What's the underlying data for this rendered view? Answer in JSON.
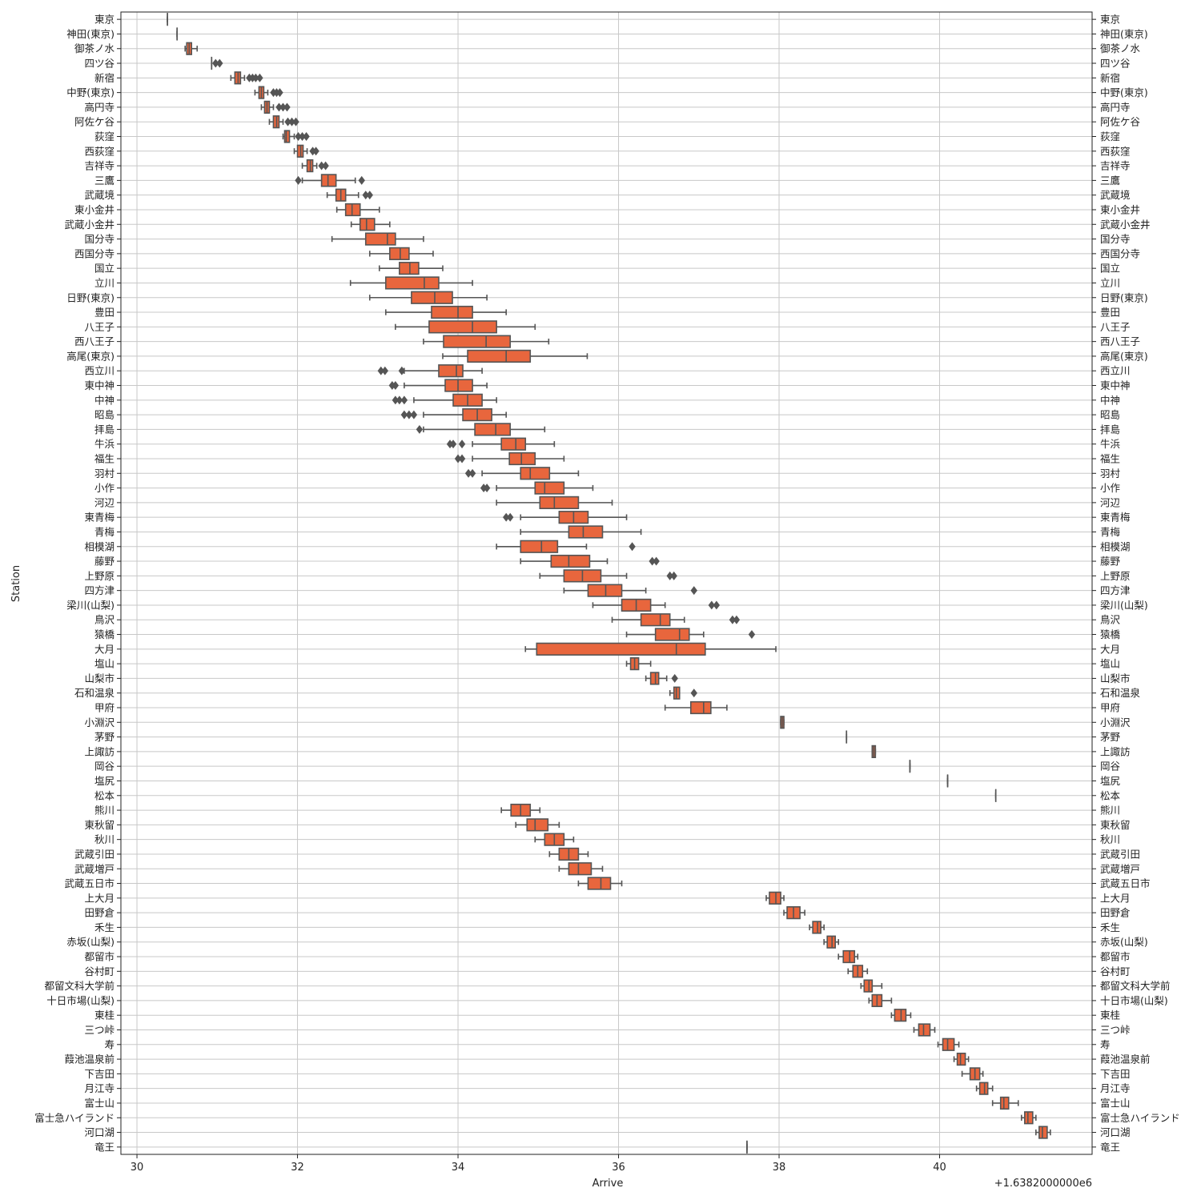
{
  "chart_data": {
    "type": "box",
    "xlabel": "Arrive",
    "ylabel": "Station",
    "x_offset_label": "+1.6382000000e6",
    "xlim": [
      29.8,
      41.9
    ],
    "xticks": [
      30,
      32,
      34,
      36,
      38,
      40
    ],
    "xtick_labels": [
      "30",
      "32",
      "34",
      "36",
      "38",
      "40"
    ],
    "grid": true,
    "box_color": "#e8663d",
    "line_color": "#555555",
    "categories": [
      "東京",
      "神田(東京)",
      "御茶ノ水",
      "四ツ谷",
      "新宿",
      "中野(東京)",
      "高円寺",
      "阿佐ケ谷",
      "荻窪",
      "西荻窪",
      "吉祥寺",
      "三鷹",
      "武蔵境",
      "東小金井",
      "武蔵小金井",
      "国分寺",
      "西国分寺",
      "国立",
      "立川",
      "日野(東京)",
      "豊田",
      "八王子",
      "西八王子",
      "高尾(東京)",
      "西立川",
      "東中神",
      "中神",
      "昭島",
      "拝島",
      "牛浜",
      "福生",
      "羽村",
      "小作",
      "河辺",
      "東青梅",
      "青梅",
      "相模湖",
      "藤野",
      "上野原",
      "四方津",
      "梁川(山梨)",
      "鳥沢",
      "猿橋",
      "大月",
      "塩山",
      "山梨市",
      "石和温泉",
      "甲府",
      "小淵沢",
      "茅野",
      "上諏訪",
      "岡谷",
      "塩尻",
      "松本",
      "熊川",
      "東秋留",
      "秋川",
      "武蔵引田",
      "武蔵増戸",
      "武蔵五日市",
      "上大月",
      "田野倉",
      "禾生",
      "赤坂(山梨)",
      "都留市",
      "谷村町",
      "都留文科大学前",
      "十日市場(山梨)",
      "東桂",
      "三つ峠",
      "寿",
      "葭池温泉前",
      "下吉田",
      "月江寺",
      "富士山",
      "富士急ハイランド",
      "河口湖",
      "竜王"
    ],
    "boxes": [
      {
        "min": 30.38,
        "q1": 30.38,
        "med": 30.38,
        "q3": 30.38,
        "max": 30.38,
        "fliers": []
      },
      {
        "min": 30.5,
        "q1": 30.5,
        "med": 30.5,
        "q3": 30.5,
        "max": 30.5,
        "fliers": []
      },
      {
        "min": 30.6,
        "q1": 30.62,
        "med": 30.65,
        "q3": 30.68,
        "max": 30.75,
        "fliers": []
      },
      {
        "min": 30.93,
        "q1": 30.93,
        "med": 30.93,
        "q3": 30.93,
        "max": 30.93,
        "fliers": [
          30.98,
          31.03
        ]
      },
      {
        "min": 31.17,
        "q1": 31.22,
        "med": 31.26,
        "q3": 31.29,
        "max": 31.34,
        "fliers": [
          31.4,
          31.44,
          31.48,
          31.53
        ]
      },
      {
        "min": 31.47,
        "q1": 31.52,
        "med": 31.55,
        "q3": 31.58,
        "max": 31.63,
        "fliers": [
          31.7,
          31.74,
          31.78
        ]
      },
      {
        "min": 31.55,
        "q1": 31.59,
        "med": 31.62,
        "q3": 31.65,
        "max": 31.7,
        "fliers": [
          31.77,
          31.82,
          31.87
        ]
      },
      {
        "min": 31.65,
        "q1": 31.7,
        "med": 31.74,
        "q3": 31.77,
        "max": 31.82,
        "fliers": [
          31.88,
          31.93,
          31.98
        ]
      },
      {
        "min": 31.82,
        "q1": 31.84,
        "med": 31.86,
        "q3": 31.9,
        "max": 31.96,
        "fliers": [
          32.01,
          32.06,
          32.11
        ]
      },
      {
        "min": 31.96,
        "q1": 32.0,
        "med": 32.04,
        "q3": 32.07,
        "max": 32.12,
        "fliers": [
          32.19,
          32.23
        ]
      },
      {
        "min": 32.06,
        "q1": 32.12,
        "med": 32.16,
        "q3": 32.19,
        "max": 32.24,
        "fliers": [
          32.3,
          32.35
        ]
      },
      {
        "min": 32.06,
        "q1": 32.3,
        "med": 32.38,
        "q3": 32.48,
        "max": 32.72,
        "fliers": [
          32.01,
          32.8
        ]
      },
      {
        "min": 32.37,
        "q1": 32.48,
        "med": 32.54,
        "q3": 32.6,
        "max": 32.76,
        "fliers": [
          32.85,
          32.9
        ]
      },
      {
        "min": 32.49,
        "q1": 32.6,
        "med": 32.68,
        "q3": 32.78,
        "max": 33.02,
        "fliers": []
      },
      {
        "min": 32.67,
        "q1": 32.78,
        "med": 32.86,
        "q3": 32.96,
        "max": 33.15,
        "fliers": []
      },
      {
        "min": 32.43,
        "q1": 32.85,
        "med": 33.12,
        "q3": 33.22,
        "max": 33.57,
        "fliers": []
      },
      {
        "min": 32.9,
        "q1": 33.15,
        "med": 33.28,
        "q3": 33.39,
        "max": 33.69,
        "fliers": []
      },
      {
        "min": 33.02,
        "q1": 33.27,
        "med": 33.4,
        "q3": 33.51,
        "max": 33.81,
        "fliers": []
      },
      {
        "min": 32.66,
        "q1": 33.1,
        "med": 33.58,
        "q3": 33.76,
        "max": 34.18,
        "fliers": []
      },
      {
        "min": 32.9,
        "q1": 33.42,
        "med": 33.71,
        "q3": 33.93,
        "max": 34.36,
        "fliers": []
      },
      {
        "min": 33.1,
        "q1": 33.67,
        "med": 34.0,
        "q3": 34.18,
        "max": 34.6,
        "fliers": []
      },
      {
        "min": 33.22,
        "q1": 33.64,
        "med": 34.18,
        "q3": 34.48,
        "max": 34.96,
        "fliers": []
      },
      {
        "min": 33.57,
        "q1": 33.82,
        "med": 34.35,
        "q3": 34.65,
        "max": 35.13,
        "fliers": []
      },
      {
        "min": 33.81,
        "q1": 34.12,
        "med": 34.6,
        "q3": 34.9,
        "max": 35.61,
        "fliers": []
      },
      {
        "min": 33.33,
        "q1": 33.76,
        "med": 33.98,
        "q3": 34.06,
        "max": 34.3,
        "fliers": [
          33.04,
          33.09,
          33.3
        ]
      },
      {
        "min": 33.33,
        "q1": 33.84,
        "med": 34.0,
        "q3": 34.18,
        "max": 34.36,
        "fliers": [
          33.18,
          33.22
        ]
      },
      {
        "min": 33.45,
        "q1": 33.94,
        "med": 34.12,
        "q3": 34.3,
        "max": 34.48,
        "fliers": [
          33.22,
          33.27,
          33.33
        ]
      },
      {
        "min": 33.57,
        "q1": 34.06,
        "med": 34.24,
        "q3": 34.42,
        "max": 34.6,
        "fliers": [
          33.33,
          33.39,
          33.45
        ]
      },
      {
        "min": 33.57,
        "q1": 34.21,
        "med": 34.47,
        "q3": 34.65,
        "max": 35.08,
        "fliers": [
          33.52
        ]
      },
      {
        "min": 34.18,
        "q1": 34.54,
        "med": 34.72,
        "q3": 34.84,
        "max": 35.2,
        "fliers": [
          33.9,
          33.94,
          34.05
        ]
      },
      {
        "min": 34.18,
        "q1": 34.64,
        "med": 34.79,
        "q3": 34.96,
        "max": 35.32,
        "fliers": [
          34.0,
          34.05
        ]
      },
      {
        "min": 34.3,
        "q1": 34.78,
        "med": 34.9,
        "q3": 35.14,
        "max": 35.5,
        "fliers": [
          34.13,
          34.18
        ]
      },
      {
        "min": 34.48,
        "q1": 34.96,
        "med": 35.08,
        "q3": 35.32,
        "max": 35.68,
        "fliers": [
          34.32,
          34.36
        ]
      },
      {
        "min": 34.48,
        "q1": 35.02,
        "med": 35.2,
        "q3": 35.5,
        "max": 35.92,
        "fliers": []
      },
      {
        "min": 34.78,
        "q1": 35.26,
        "med": 35.44,
        "q3": 35.62,
        "max": 36.1,
        "fliers": [
          34.6,
          34.65
        ]
      },
      {
        "min": 34.78,
        "q1": 35.38,
        "med": 35.56,
        "q3": 35.8,
        "max": 36.28,
        "fliers": []
      },
      {
        "min": 34.48,
        "q1": 34.78,
        "med": 35.04,
        "q3": 35.24,
        "max": 35.6,
        "fliers": [
          36.17
        ]
      },
      {
        "min": 34.78,
        "q1": 35.16,
        "med": 35.38,
        "q3": 35.64,
        "max": 35.86,
        "fliers": [
          36.42,
          36.47
        ]
      },
      {
        "min": 35.02,
        "q1": 35.32,
        "med": 35.55,
        "q3": 35.78,
        "max": 36.1,
        "fliers": [
          36.64,
          36.69
        ]
      },
      {
        "min": 35.32,
        "q1": 35.62,
        "med": 35.84,
        "q3": 36.04,
        "max": 36.34,
        "fliers": [
          36.94
        ]
      },
      {
        "min": 35.68,
        "q1": 36.04,
        "med": 36.22,
        "q3": 36.4,
        "max": 36.58,
        "fliers": [
          37.16,
          37.22
        ]
      },
      {
        "min": 35.92,
        "q1": 36.28,
        "med": 36.52,
        "q3": 36.64,
        "max": 36.82,
        "fliers": [
          37.42,
          37.47
        ]
      },
      {
        "min": 36.1,
        "q1": 36.46,
        "med": 36.76,
        "q3": 36.88,
        "max": 37.06,
        "fliers": [
          37.66
        ]
      },
      {
        "min": 34.84,
        "q1": 34.98,
        "med": 36.72,
        "q3": 37.08,
        "max": 37.96,
        "fliers": []
      },
      {
        "min": 36.1,
        "q1": 36.15,
        "med": 36.2,
        "q3": 36.25,
        "max": 36.4,
        "fliers": []
      },
      {
        "min": 36.34,
        "q1": 36.4,
        "med": 36.46,
        "q3": 36.5,
        "max": 36.6,
        "fliers": [
          36.7
        ]
      },
      {
        "min": 36.64,
        "q1": 36.69,
        "med": 36.72,
        "q3": 36.76,
        "max": 36.76,
        "fliers": [
          36.94
        ]
      },
      {
        "min": 36.58,
        "q1": 36.9,
        "med": 37.06,
        "q3": 37.15,
        "max": 37.35,
        "fliers": []
      },
      {
        "min": 38.02,
        "q1": 38.02,
        "med": 38.04,
        "q3": 38.06,
        "max": 38.06,
        "fliers": []
      },
      {
        "min": 38.84,
        "q1": 38.84,
        "med": 38.84,
        "q3": 38.84,
        "max": 38.84,
        "fliers": []
      },
      {
        "min": 39.16,
        "q1": 39.16,
        "med": 39.18,
        "q3": 39.2,
        "max": 39.2,
        "fliers": []
      },
      {
        "min": 39.63,
        "q1": 39.63,
        "med": 39.63,
        "q3": 39.63,
        "max": 39.63,
        "fliers": []
      },
      {
        "min": 40.1,
        "q1": 40.1,
        "med": 40.1,
        "q3": 40.1,
        "max": 40.1,
        "fliers": []
      },
      {
        "min": 40.7,
        "q1": 40.7,
        "med": 40.7,
        "q3": 40.7,
        "max": 40.7,
        "fliers": []
      },
      {
        "min": 34.54,
        "q1": 34.66,
        "med": 34.78,
        "q3": 34.9,
        "max": 35.02,
        "fliers": []
      },
      {
        "min": 34.72,
        "q1": 34.86,
        "med": 34.96,
        "q3": 35.12,
        "max": 35.26,
        "fliers": []
      },
      {
        "min": 34.96,
        "q1": 35.08,
        "med": 35.2,
        "q3": 35.32,
        "max": 35.44,
        "fliers": []
      },
      {
        "min": 35.14,
        "q1": 35.26,
        "med": 35.38,
        "q3": 35.5,
        "max": 35.62,
        "fliers": []
      },
      {
        "min": 35.26,
        "q1": 35.38,
        "med": 35.5,
        "q3": 35.66,
        "max": 35.8,
        "fliers": []
      },
      {
        "min": 35.5,
        "q1": 35.62,
        "med": 35.78,
        "q3": 35.9,
        "max": 36.04,
        "fliers": []
      },
      {
        "min": 37.84,
        "q1": 37.88,
        "med": 37.96,
        "q3": 38.02,
        "max": 38.06,
        "fliers": []
      },
      {
        "min": 38.06,
        "q1": 38.1,
        "med": 38.18,
        "q3": 38.26,
        "max": 38.32,
        "fliers": []
      },
      {
        "min": 38.38,
        "q1": 38.42,
        "med": 38.48,
        "q3": 38.52,
        "max": 38.56,
        "fliers": []
      },
      {
        "min": 38.56,
        "q1": 38.6,
        "med": 38.66,
        "q3": 38.7,
        "max": 38.74,
        "fliers": []
      },
      {
        "min": 38.74,
        "q1": 38.8,
        "med": 38.88,
        "q3": 38.94,
        "max": 38.98,
        "fliers": []
      },
      {
        "min": 38.86,
        "q1": 38.92,
        "med": 38.98,
        "q3": 39.04,
        "max": 39.1,
        "fliers": []
      },
      {
        "min": 39.02,
        "q1": 39.06,
        "med": 39.12,
        "q3": 39.16,
        "max": 39.28,
        "fliers": []
      },
      {
        "min": 39.12,
        "q1": 39.16,
        "med": 39.22,
        "q3": 39.28,
        "max": 39.4,
        "fliers": []
      },
      {
        "min": 39.4,
        "q1": 39.44,
        "med": 39.52,
        "q3": 39.58,
        "max": 39.64,
        "fliers": []
      },
      {
        "min": 39.68,
        "q1": 39.74,
        "med": 39.8,
        "q3": 39.88,
        "max": 39.94,
        "fliers": []
      },
      {
        "min": 39.98,
        "q1": 40.04,
        "med": 40.1,
        "q3": 40.18,
        "max": 40.24,
        "fliers": []
      },
      {
        "min": 40.18,
        "q1": 40.22,
        "med": 40.26,
        "q3": 40.32,
        "max": 40.36,
        "fliers": []
      },
      {
        "min": 40.28,
        "q1": 40.38,
        "med": 40.44,
        "q3": 40.5,
        "max": 40.54,
        "fliers": []
      },
      {
        "min": 40.46,
        "q1": 40.5,
        "med": 40.56,
        "q3": 40.6,
        "max": 40.66,
        "fliers": []
      },
      {
        "min": 40.66,
        "q1": 40.76,
        "med": 40.8,
        "q3": 40.86,
        "max": 40.98,
        "fliers": []
      },
      {
        "min": 41.02,
        "q1": 41.06,
        "med": 41.1,
        "q3": 41.16,
        "max": 41.2,
        "fliers": []
      },
      {
        "min": 41.2,
        "q1": 41.24,
        "med": 41.28,
        "q3": 41.34,
        "max": 41.38,
        "fliers": []
      },
      {
        "min": 37.6,
        "q1": 37.6,
        "med": 37.6,
        "q3": 37.6,
        "max": 37.6,
        "fliers": []
      }
    ]
  }
}
